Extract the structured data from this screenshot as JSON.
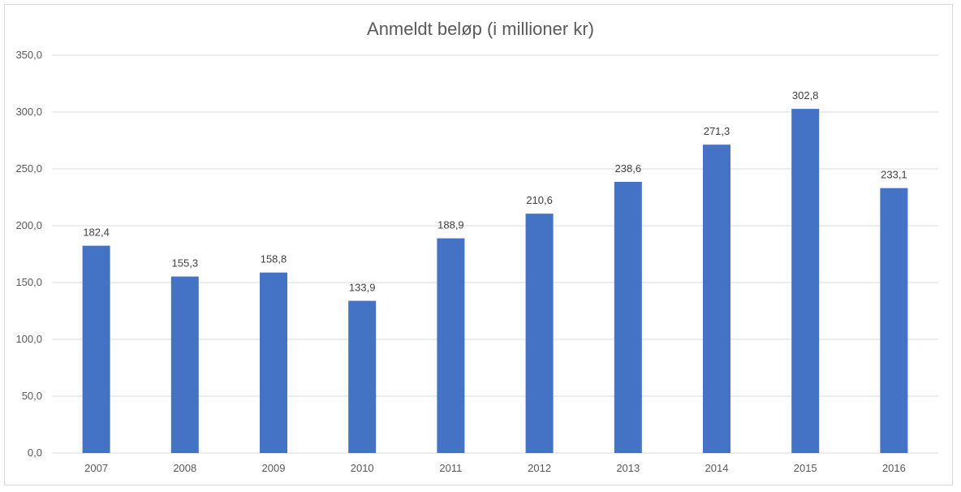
{
  "chart_data": {
    "type": "bar",
    "title": "Anmeldt beløp (i millioner kr)",
    "xlabel": "",
    "ylabel": "",
    "categories": [
      "2007",
      "2008",
      "2009",
      "2010",
      "2011",
      "2012",
      "2013",
      "2014",
      "2015",
      "2016"
    ],
    "values": [
      182.4,
      155.3,
      158.8,
      133.9,
      188.9,
      210.6,
      238.6,
      271.3,
      302.8,
      233.1
    ],
    "value_labels": [
      "182,4",
      "155,3",
      "158,8",
      "133,9",
      "188,9",
      "210,6",
      "238,6",
      "271,3",
      "302,8",
      "233,1"
    ],
    "ylim": [
      0,
      350
    ],
    "yticks": [
      0,
      50,
      100,
      150,
      200,
      250,
      300,
      350
    ],
    "ytick_labels": [
      "0,0",
      "50,0",
      "100,0",
      "150,0",
      "200,0",
      "250,0",
      "300,0",
      "350,0"
    ],
    "grid": true,
    "legend": "none",
    "bar_color": "#4472c4"
  }
}
